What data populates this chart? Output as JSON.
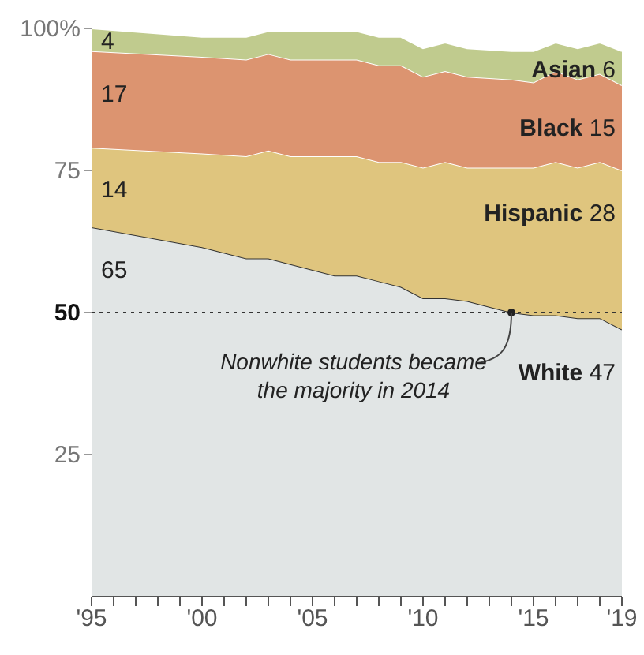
{
  "chart_data": {
    "type": "area",
    "stacked": true,
    "x": [
      1995,
      2000,
      2002,
      2003,
      2004,
      2006,
      2007,
      2008,
      2009,
      2010,
      2011,
      2012,
      2014,
      2015,
      2016,
      2017,
      2018,
      2019
    ],
    "series": [
      {
        "name": "White",
        "color": "#e1e5e5",
        "values": [
          65,
          61.5,
          59.5,
          59.5,
          58.5,
          56.5,
          56.5,
          55.5,
          54.5,
          52.5,
          52.5,
          52,
          50,
          49.5,
          49.5,
          49,
          49,
          47
        ],
        "value_labels": [
          "65",
          null,
          null,
          null,
          null,
          null,
          null,
          null,
          null,
          null,
          null,
          null,
          null,
          null,
          null,
          null,
          null,
          "47"
        ]
      },
      {
        "name": "Hispanic",
        "color": "#dfc57e",
        "values": [
          14,
          16.5,
          18,
          19,
          19,
          21,
          21,
          21,
          22,
          23,
          24,
          23.5,
          25.5,
          26,
          27,
          26.5,
          27.5,
          28
        ],
        "value_labels": [
          "14",
          null,
          null,
          null,
          null,
          null,
          null,
          null,
          null,
          null,
          null,
          null,
          null,
          null,
          null,
          null,
          null,
          "28"
        ]
      },
      {
        "name": "Black",
        "color": "#dc9470",
        "values": [
          17,
          17,
          17,
          17,
          17,
          17,
          17,
          17,
          17,
          16,
          16,
          16,
          15.5,
          15,
          16,
          15.5,
          15.5,
          15
        ],
        "value_labels": [
          "17",
          null,
          null,
          null,
          null,
          null,
          null,
          null,
          null,
          null,
          null,
          null,
          null,
          null,
          null,
          null,
          null,
          "15"
        ]
      },
      {
        "name": "Asian",
        "color": "#c0cb8e",
        "values": [
          4,
          3.5,
          4,
          4,
          5,
          5,
          5,
          5,
          5,
          5,
          5,
          5,
          5,
          5.5,
          5,
          5.5,
          5.5,
          6
        ],
        "value_labels": [
          "4",
          null,
          null,
          null,
          null,
          null,
          null,
          null,
          null,
          null,
          null,
          null,
          null,
          null,
          null,
          null,
          null,
          "6"
        ]
      }
    ],
    "xlim": [
      1995,
      2019
    ],
    "xticks": [
      {
        "value": 1995,
        "label": "'95"
      },
      {
        "value": 1996,
        "label": null
      },
      {
        "value": 1997,
        "label": null
      },
      {
        "value": 1998,
        "label": null
      },
      {
        "value": 1999,
        "label": null
      },
      {
        "value": 2000,
        "label": "'00"
      },
      {
        "value": 2001,
        "label": null
      },
      {
        "value": 2002,
        "label": null
      },
      {
        "value": 2003,
        "label": null
      },
      {
        "value": 2004,
        "label": null
      },
      {
        "value": 2005,
        "label": "'05"
      },
      {
        "value": 2006,
        "label": null
      },
      {
        "value": 2007,
        "label": null
      },
      {
        "value": 2008,
        "label": null
      },
      {
        "value": 2009,
        "label": null
      },
      {
        "value": 2010,
        "label": "'10"
      },
      {
        "value": 2011,
        "label": null
      },
      {
        "value": 2012,
        "label": null
      },
      {
        "value": 2013,
        "label": null
      },
      {
        "value": 2014,
        "label": null
      },
      {
        "value": 2015,
        "label": "'15"
      },
      {
        "value": 2016,
        "label": null
      },
      {
        "value": 2017,
        "label": null
      },
      {
        "value": 2018,
        "label": null
      },
      {
        "value": 2019,
        "label": "'19"
      }
    ],
    "ylim": [
      0,
      100
    ],
    "yticks": [
      25,
      50,
      75,
      {
        "value": 100,
        "label": "100%"
      }
    ],
    "ref_lines": [
      {
        "axis": "y",
        "value": 50,
        "color": "#333333",
        "line_style": "dotted"
      }
    ],
    "annotations": [
      {
        "text": "Nonwhite students became the majority in 2014",
        "x": 2014,
        "y": 50
      }
    ],
    "grid": false
  }
}
